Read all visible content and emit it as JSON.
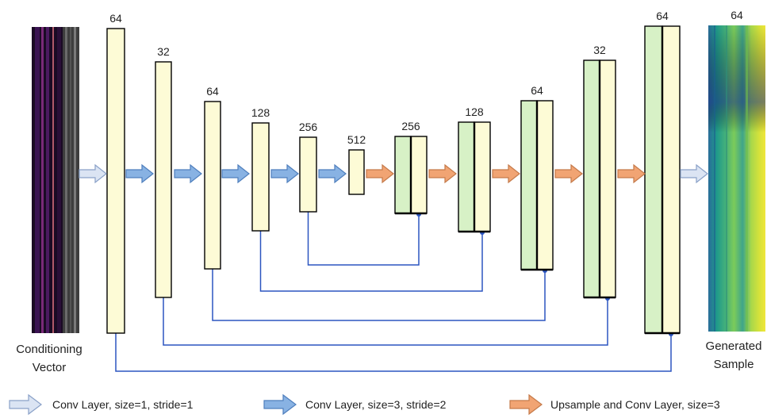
{
  "input": {
    "label_line1": "Conditioning",
    "label_line2": "Vector"
  },
  "output": {
    "channel_label": "64",
    "label_line1": "Generated",
    "label_line2": "Sample"
  },
  "layers": [
    {
      "label": "64",
      "kind": "encoder"
    },
    {
      "label": "32",
      "kind": "encoder"
    },
    {
      "label": "64",
      "kind": "encoder"
    },
    {
      "label": "128",
      "kind": "encoder"
    },
    {
      "label": "256",
      "kind": "encoder"
    },
    {
      "label": "512",
      "kind": "bottleneck"
    },
    {
      "label": "256",
      "kind": "decoder"
    },
    {
      "label": "128",
      "kind": "decoder"
    },
    {
      "label": "64",
      "kind": "decoder"
    },
    {
      "label": "32",
      "kind": "decoder"
    },
    {
      "label": "64",
      "kind": "decoder"
    }
  ],
  "legend": [
    {
      "label": "Conv Layer, size=1, stride=1",
      "arrow": "conv-1x1"
    },
    {
      "label": "Conv Layer, size=3, stride=2",
      "arrow": "conv-3x3"
    },
    {
      "label": "Upsample and Conv Layer, size=3",
      "arrow": "upsample"
    }
  ],
  "colors": {
    "encoder_fill": "#fdfbd6",
    "decoder_fill": "#d7f1c6",
    "outline": "#000000",
    "arrow_conv1": "#dbe4f3",
    "arrow_conv3": "#88b2e3",
    "arrow_upsample": "#f1a473",
    "skip_line": "#2b55c0",
    "label": "#222222"
  }
}
